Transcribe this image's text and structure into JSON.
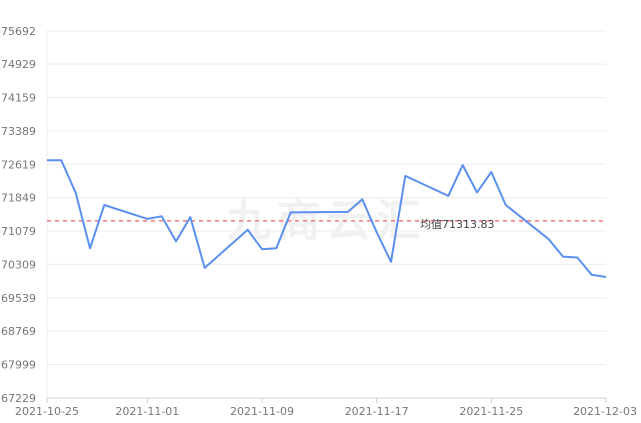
{
  "chart_data": {
    "type": "line",
    "title": "",
    "xlabel": "",
    "ylabel": "",
    "grid": true,
    "x_tick_labels": [
      "2021-10-25",
      "2021-11-01",
      "2021-11-09",
      "2021-11-17",
      "2021-11-25",
      "2021-12-03"
    ],
    "y_tick_labels": [
      67229,
      67999,
      68769,
      69539,
      70309,
      71079,
      71849,
      72619,
      73389,
      74159,
      74929,
      75692
    ],
    "ylim": [
      67229,
      75692
    ],
    "xlim": [
      "2021-10-25",
      "2021-12-03"
    ],
    "series": [
      {
        "color": "#5b8ff0",
        "x": [
          "2021-10-25",
          "2021-10-26",
          "2021-10-27",
          "2021-10-28",
          "2021-10-29",
          "2021-11-01",
          "2021-11-02",
          "2021-11-03",
          "2021-11-04",
          "2021-11-05",
          "2021-11-08",
          "2021-11-09",
          "2021-11-10",
          "2021-11-11",
          "2021-11-15",
          "2021-11-16",
          "2021-11-17",
          "2021-11-18",
          "2021-11-19",
          "2021-11-22",
          "2021-11-23",
          "2021-11-24",
          "2021-11-25",
          "2021-11-26",
          "2021-11-29",
          "2021-11-30",
          "2021-12-01",
          "2021-12-02",
          "2021-12-03"
        ],
        "values": [
          72710,
          72710,
          71960,
          70680,
          71680,
          71360,
          71420,
          70840,
          71400,
          70230,
          71110,
          70660,
          70680,
          71510,
          71520,
          71810,
          71050,
          70370,
          72350,
          71890,
          72600,
          71970,
          72440,
          71680,
          70890,
          70490,
          70470,
          70070,
          70020
        ]
      }
    ],
    "mean_line": {
      "value": 71313.83,
      "label": "均值71313.83",
      "color": "#f47777",
      "style": "dashed"
    },
    "watermark": "九商云汇"
  }
}
